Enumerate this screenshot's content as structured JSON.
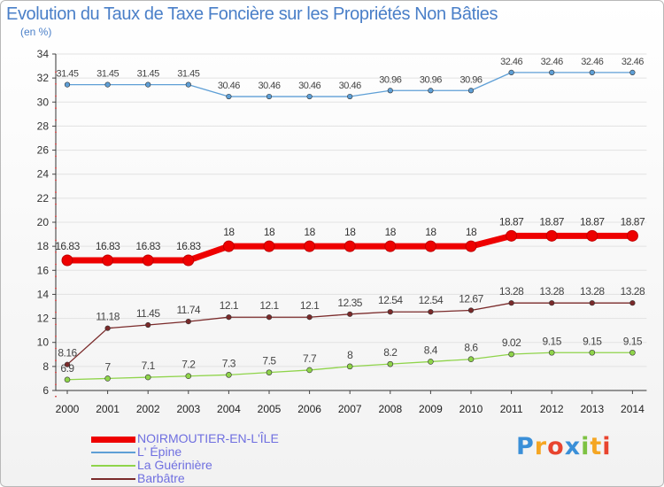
{
  "chart_data": {
    "type": "line",
    "title": "Evolution du Taux de Taxe Foncière sur les Propriétés Non Bâties",
    "subtitle": "(en %)",
    "ylim": [
      6,
      34
    ],
    "yticks": [
      "6",
      "8",
      "10",
      "12",
      "14",
      "16",
      "18",
      "20",
      "22",
      "24",
      "26",
      "28",
      "30",
      "32",
      "34"
    ],
    "categories": [
      "2000",
      "2001",
      "2002",
      "2003",
      "2004",
      "2005",
      "2006",
      "2007",
      "2008",
      "2009",
      "2010",
      "2011",
      "2012",
      "2013",
      "2014"
    ],
    "series": [
      {
        "name": "NOIRMOUTIER-EN-L'ÎLE",
        "color": "#ee0000",
        "values": [
          16.83,
          16.83,
          16.83,
          16.83,
          18,
          18,
          18,
          18,
          18,
          18,
          18,
          18.87,
          18.87,
          18.87,
          18.87
        ],
        "labels": [
          "16.83",
          "16.83",
          "16.83",
          "16.83",
          "18",
          "18",
          "18",
          "18",
          "18",
          "18",
          "18",
          "18.87",
          "18.87",
          "18.87",
          "18.87"
        ]
      },
      {
        "name": "L' Épine",
        "color": "#5e9fd6",
        "values": [
          31.45,
          31.45,
          31.45,
          31.45,
          30.46,
          30.46,
          30.46,
          30.46,
          30.96,
          30.96,
          30.96,
          32.46,
          32.46,
          32.46,
          32.46
        ],
        "labels": [
          "31.45",
          "31.45",
          "31.45",
          "31.45",
          "30.46",
          "30.46",
          "30.46",
          "30.46",
          "30.96",
          "30.96",
          "30.96",
          "32.46",
          "32.46",
          "32.46",
          "32.46"
        ]
      },
      {
        "name": "La Guérinière",
        "color": "#8fd44a",
        "values": [
          6.9,
          7,
          7.1,
          7.2,
          7.3,
          7.5,
          7.7,
          8,
          8.2,
          8.4,
          8.6,
          9.02,
          9.15,
          9.15,
          9.15
        ],
        "labels": [
          "6.9",
          "7",
          "7.1",
          "7.2",
          "7.3",
          "7.5",
          "7.7",
          "8",
          "8.2",
          "8.4",
          "8.6",
          "9.02",
          "9.15",
          "9.15",
          "9.15"
        ]
      },
      {
        "name": "Barbâtre",
        "color": "#7a2a2a",
        "values": [
          8.16,
          11.18,
          11.45,
          11.74,
          12.1,
          12.1,
          12.1,
          12.35,
          12.54,
          12.54,
          12.67,
          13.28,
          13.28,
          13.28,
          13.28
        ],
        "labels": [
          "8.16",
          "11.18",
          "11.45",
          "11.74",
          "12.1",
          "12.1",
          "12.1",
          "12.35",
          "12.54",
          "12.54",
          "12.67",
          "13.28",
          "13.28",
          "13.28",
          "13.28"
        ]
      }
    ]
  },
  "logo": {
    "letters": [
      "P",
      "r",
      "o",
      "x",
      "i",
      "t",
      "i"
    ],
    "colors": [
      "#3a8fd8",
      "#f5a623",
      "#e8442f",
      "#3a8fd8",
      "#7dc242",
      "#f5a623",
      "#e8442f"
    ]
  }
}
